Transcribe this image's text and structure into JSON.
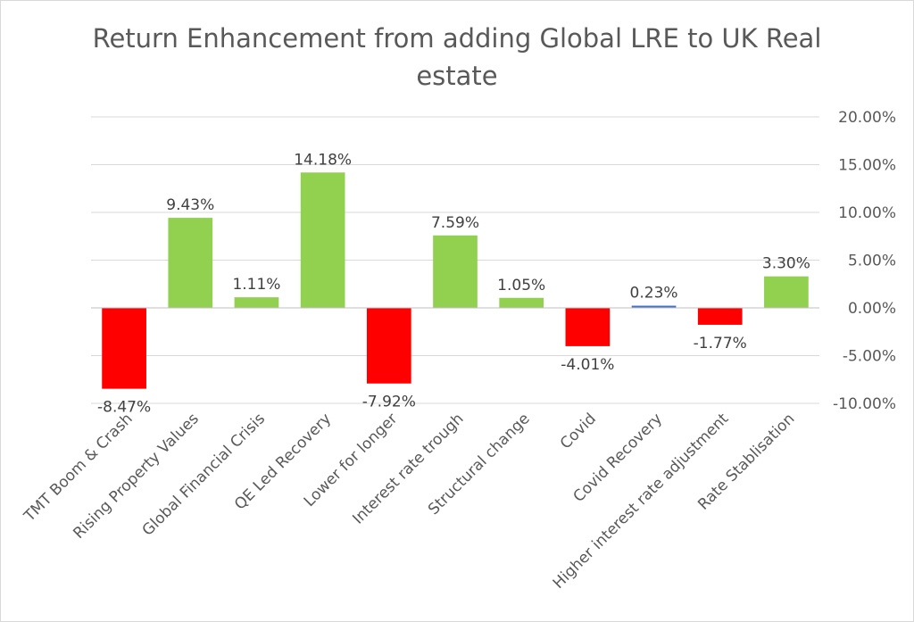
{
  "chart_data": {
    "type": "bar",
    "title_lines": [
      "Return Enhancement from adding Global LRE to UK Real",
      "estate"
    ],
    "categories": [
      "TMT Boom & Crash",
      "Rising  Property Values",
      "Global Financial Crisis",
      "QE Led Recovery",
      "Lower for longer",
      "Interest rate trough",
      "Structural change",
      "Covid",
      "Covid Recovery",
      "Higher interest rate adjustment",
      "Rate Stablisation"
    ],
    "values": [
      -8.47,
      9.43,
      1.11,
      14.18,
      -7.92,
      7.59,
      1.05,
      -4.01,
      0.23,
      -1.77,
      3.3
    ],
    "data_labels": [
      "-8.47%",
      "9.43%",
      "1.11%",
      "14.18%",
      "-7.92%",
      "7.59%",
      "1.05%",
      "-4.01%",
      "0.23%",
      "-1.77%",
      "3.30%"
    ],
    "bar_colors": [
      "#ff0000",
      "#92d050",
      "#92d050",
      "#92d050",
      "#ff0000",
      "#92d050",
      "#92d050",
      "#ff0000",
      "#4472c4",
      "#ff0000",
      "#92d050"
    ],
    "y_axis_position": "right",
    "yticks": [
      20,
      15,
      10,
      5,
      0,
      -5,
      -10
    ],
    "ytick_labels": [
      "20.00%",
      "15.00%",
      "10.00%",
      "5.00%",
      "0.00%",
      "-5.00%",
      "-10.00%"
    ],
    "ylim": [
      -10,
      20
    ],
    "grid": true,
    "xlabel": "",
    "ylabel": ""
  }
}
